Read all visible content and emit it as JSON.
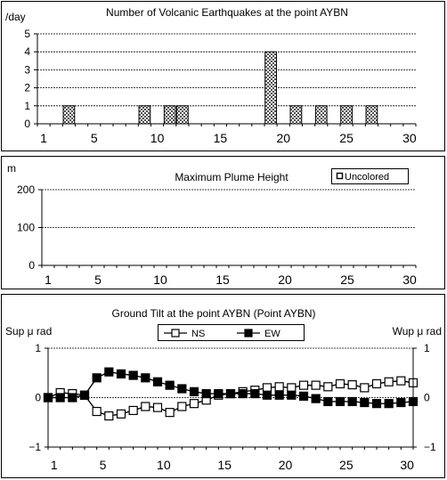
{
  "chart_data": [
    {
      "type": "bar",
      "title": "Number of Volcanic Earthquakes at the point AYBN",
      "ylabel": "/day",
      "xlabel": "",
      "ylim": [
        0,
        5
      ],
      "xlim": [
        1,
        31
      ],
      "yticks": [
        "0",
        "1",
        "2",
        "3",
        "4",
        "5"
      ],
      "xticks": [
        "1",
        "5",
        "10",
        "15",
        "20",
        "25",
        "30"
      ],
      "grid": true,
      "x": [
        3,
        9,
        11,
        12,
        19,
        21,
        23,
        25,
        27
      ],
      "values": [
        1,
        1,
        1,
        1,
        4,
        1,
        1,
        1,
        1
      ]
    },
    {
      "type": "bar",
      "title": "Maximum Plume Height",
      "ylabel": "m",
      "xlabel": "",
      "ylim": [
        0,
        200
      ],
      "xlim": [
        1,
        31
      ],
      "yticks": [
        "0",
        "100",
        "200"
      ],
      "xticks": [
        "1",
        "5",
        "10",
        "15",
        "20",
        "25",
        "30"
      ],
      "grid": true,
      "legend": {
        "position": "top-right",
        "entries": [
          "Uncolored"
        ]
      },
      "series": [
        {
          "name": "Uncolored",
          "x": [],
          "values": []
        }
      ]
    },
    {
      "type": "line",
      "title": "Ground Tilt at the point AYBN (Point AYBN)",
      "ylabel_left": "Sup μ rad",
      "ylabel_right": "Wup μ rad",
      "xlabel": "",
      "ylim": [
        -1,
        1
      ],
      "xlim": [
        1,
        31
      ],
      "yticks_left": [
        "-1",
        "0",
        "1"
      ],
      "yticks_right": [
        "-1",
        "0",
        "1"
      ],
      "xticks": [
        "1",
        "5",
        "10",
        "15",
        "20",
        "25",
        "30"
      ],
      "grid": true,
      "legend": {
        "position": "top-center",
        "entries": [
          "NS",
          "EW"
        ]
      },
      "x": [
        1,
        2,
        3,
        4,
        5,
        6,
        7,
        8,
        9,
        10,
        11,
        12,
        13,
        14,
        15,
        16,
        17,
        18,
        19,
        20,
        21,
        22,
        23,
        24,
        25,
        26,
        27,
        28,
        29,
        30,
        31
      ],
      "series": [
        {
          "name": "NS",
          "marker": "open-square",
          "values": [
            0.0,
            0.1,
            0.08,
            0.05,
            -0.28,
            -0.37,
            -0.33,
            -0.26,
            -0.18,
            -0.2,
            -0.3,
            -0.18,
            -0.12,
            -0.05,
            0.05,
            0.08,
            0.12,
            0.15,
            0.2,
            0.22,
            0.2,
            0.25,
            0.25,
            0.22,
            0.28,
            0.26,
            0.2,
            0.28,
            0.32,
            0.34,
            0.3
          ]
        },
        {
          "name": "EW",
          "marker": "filled-square",
          "values": [
            0.0,
            0.0,
            0.0,
            0.05,
            0.4,
            0.52,
            0.48,
            0.45,
            0.4,
            0.32,
            0.25,
            0.18,
            0.12,
            0.08,
            0.08,
            0.08,
            0.08,
            0.08,
            0.05,
            0.05,
            0.05,
            0.03,
            -0.02,
            -0.08,
            -0.08,
            -0.08,
            -0.1,
            -0.12,
            -0.12,
            -0.1,
            -0.08
          ]
        }
      ]
    }
  ]
}
